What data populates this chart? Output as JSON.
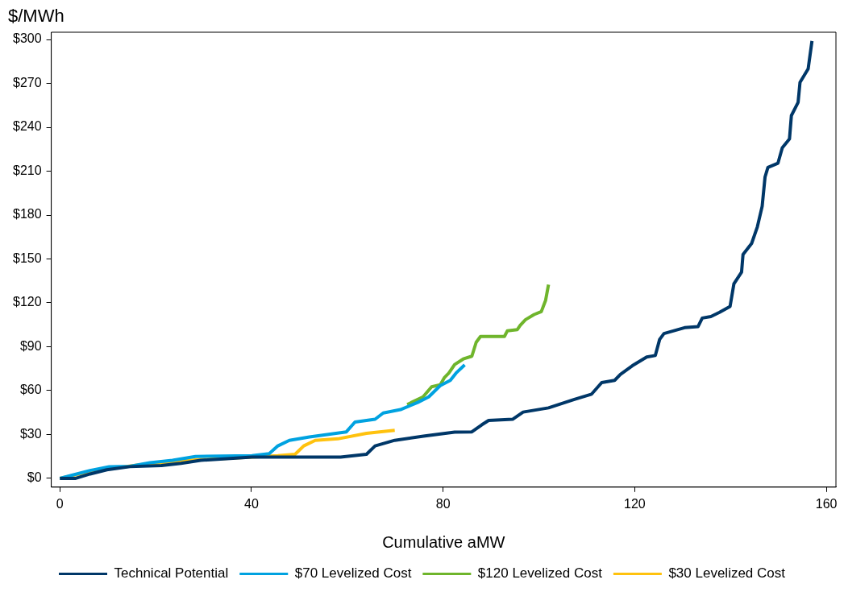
{
  "chart_data": {
    "type": "line",
    "ylabel": "$/MWh",
    "xlabel": "Cumulative aMW",
    "xlim": [
      -1.8,
      162
    ],
    "xticks": [
      0,
      40,
      80,
      120,
      160
    ],
    "ylim": [
      -6,
      305
    ],
    "yticks": [
      {
        "value": 0,
        "label": "$0"
      },
      {
        "value": 30,
        "label": "$30"
      },
      {
        "value": 60,
        "label": "$60"
      },
      {
        "value": 90,
        "label": "$90"
      },
      {
        "value": 120,
        "label": "$120"
      },
      {
        "value": 150,
        "label": "$150"
      },
      {
        "value": 180,
        "label": "$180"
      },
      {
        "value": 210,
        "label": "$210"
      },
      {
        "value": 240,
        "label": "$240"
      },
      {
        "value": 270,
        "label": "$270"
      },
      {
        "value": 300,
        "label": "$300"
      }
    ],
    "grid": false,
    "legend": "bottom",
    "marker": "none",
    "line_style": "solid",
    "series": [
      {
        "name": "Technical Potential",
        "color": "#003768",
        "x": [
          0,
          3.3,
          6.3,
          9.8,
          14.6,
          21.2,
          25.3,
          29.4,
          40.1,
          58.6,
          64,
          65.8,
          69.9,
          75.9,
          82.4,
          86,
          88.1,
          89.5,
          94.5,
          96.7,
          102,
          107.4,
          111,
          113.1,
          115.8,
          117,
          119.5,
          122.5,
          124.3,
          125.2,
          126.1,
          130.4,
          133.2,
          134.1,
          135.9,
          137.7,
          139.9,
          140.7,
          142.3,
          142.6,
          144.4,
          145.6,
          146.6,
          147.2,
          147.8,
          149.9,
          150.8,
          152.3,
          152.7,
          154.1,
          154.5,
          156.2,
          157
        ],
        "values": [
          0,
          0,
          3,
          5.9,
          8,
          8.8,
          10.3,
          12.3,
          14.6,
          14.6,
          16.5,
          22.2,
          26,
          28.9,
          31.6,
          31.8,
          36.7,
          39.6,
          40.4,
          45.3,
          48.2,
          54,
          57.6,
          65.5,
          67,
          71,
          77,
          83,
          84,
          95,
          99,
          103,
          103.7,
          109.6,
          110.6,
          113.5,
          117.5,
          133,
          141,
          153,
          160.6,
          172,
          186,
          206,
          212.6,
          215.5,
          226,
          232,
          248,
          257,
          270.7,
          280,
          299
        ]
      },
      {
        "name": "$70 Levelized Cost",
        "color": "#00a2e0",
        "x": [
          0,
          2.7,
          6.3,
          10.3,
          14.6,
          18.8,
          23.5,
          28.3,
          40.1,
          43.7,
          45.5,
          47.9,
          52.1,
          59.8,
          61.6,
          65.8,
          67.5,
          71.1,
          74.7,
          77,
          79.4,
          81.5,
          82.7,
          84.5
        ],
        "values": [
          0,
          2.3,
          5.4,
          7.9,
          8.2,
          10.7,
          12.3,
          15,
          15.5,
          16.9,
          22.2,
          26,
          28.3,
          31.8,
          38.5,
          40.4,
          44.7,
          47,
          51.9,
          55.7,
          63.4,
          67,
          72,
          77.6
        ]
      },
      {
        "name": "$120 Levelized Cost",
        "color": "#6fb52c",
        "x": [
          72.5,
          75.8,
          77.6,
          79.4,
          80.3,
          81.2,
          82.4,
          84.2,
          86,
          86.9,
          87.8,
          92.8,
          93.4,
          95.5,
          96.1,
          97.2,
          99,
          100.5,
          101.4,
          102
        ],
        "values": [
          50.5,
          55.7,
          62.6,
          64,
          69,
          72,
          77.8,
          81.6,
          83.5,
          93,
          97,
          97,
          100.8,
          101.7,
          104.6,
          108.5,
          112,
          114,
          121.8,
          132.4
        ]
      },
      {
        "name": "$30 Levelized Cost",
        "color": "#ffc20e",
        "x": [
          0,
          6.9,
          16.4,
          28.3,
          40.1,
          45.5,
          49.1,
          50.9,
          53.3,
          58,
          64,
          69.9
        ],
        "values": [
          0,
          5,
          9.2,
          12.6,
          14.6,
          15.5,
          16.5,
          22.2,
          26,
          27,
          30.8,
          32.8
        ]
      }
    ]
  }
}
